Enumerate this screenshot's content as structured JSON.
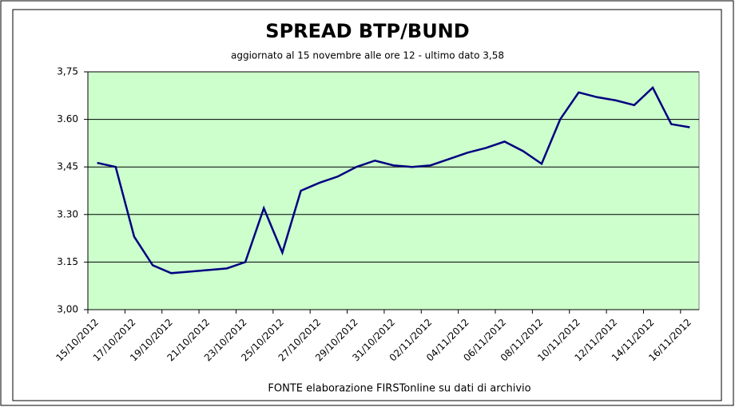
{
  "chart_data": {
    "type": "line",
    "title": "SPREAD  BTP/BUND",
    "subtitle": "aggiornato al 15 novembre alle ore 12 - ultimo dato 3,58",
    "source": "FONTE elaborazione FIRSTonline su dati di archivio",
    "categories": [
      "15/10/2012",
      null,
      "17/10/2012",
      null,
      "19/10/2012",
      null,
      "21/10/2012",
      null,
      "23/10/2012",
      null,
      "25/10/2012",
      null,
      "27/10/2012",
      null,
      "29/10/2012",
      null,
      "31/10/2012",
      null,
      "02/11/2012",
      null,
      "04/11/2012",
      null,
      "06/11/2012",
      null,
      "08/11/2012",
      null,
      "10/11/2012",
      null,
      "12/11/2012",
      null,
      "14/11/2012",
      null,
      "16/11/2012"
    ],
    "series": [
      {
        "color": "#000080",
        "values": [
          3.463,
          3.45,
          3.23,
          3.14,
          3.115,
          3.12,
          3.125,
          3.13,
          3.15,
          3.32,
          3.18,
          3.375,
          3.4,
          3.42,
          3.45,
          3.47,
          3.455,
          3.45,
          3.455,
          3.475,
          3.495,
          3.51,
          3.53,
          3.5,
          3.46,
          3.6,
          3.685,
          3.67,
          3.66,
          3.645,
          3.7,
          3.585,
          3.575
        ]
      }
    ],
    "ylim": [
      3.0,
      3.75
    ],
    "yticks": [
      {
        "value": 3.0,
        "label": "3,00"
      },
      3.15,
      {
        "value": 3.3,
        "label": "3.30"
      },
      {
        "value": 3.45,
        "label": "3,45"
      },
      {
        "value": 3.6,
        "label": "3.60"
      },
      {
        "value": 3.75,
        "label": "3,75"
      }
    ],
    "grid": true,
    "plot_color": "#ccffcc"
  }
}
